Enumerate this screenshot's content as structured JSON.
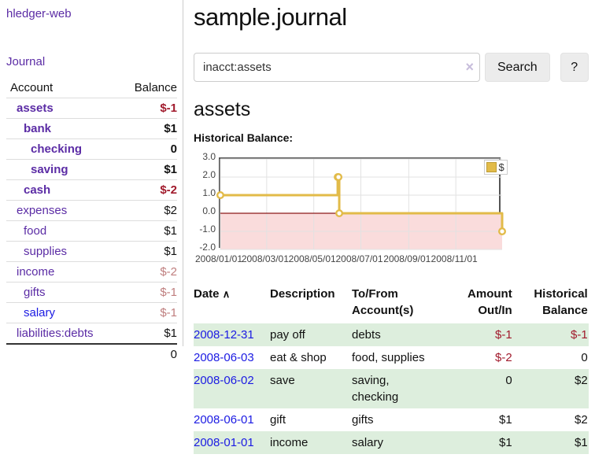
{
  "app": {
    "brand": "hledger-web"
  },
  "nav": {
    "journal_label": "Journal"
  },
  "colors": {
    "link_purple": "#5b2ca5",
    "link_blue": "#1b1ae3",
    "neg_strong": "#a11a2c",
    "neg_soft": "#bf7e7e",
    "row_shade": "#ddeedd",
    "chart_line": "#e2bb49",
    "chart_negative_shade": "#fadcdc",
    "chart_zero_line": "#8c1a1a",
    "chart_border": "#555555",
    "chart_grid": "#e2e2e2"
  },
  "sidebar": {
    "columns": {
      "account": "Account",
      "balance": "Balance"
    },
    "accounts": [
      {
        "name": "assets",
        "balance": "$-1",
        "indent": 1,
        "bold": true,
        "balance_class": "neg-strong",
        "name_class": ""
      },
      {
        "name": "bank",
        "balance": "$1",
        "indent": 2,
        "bold": true,
        "balance_class": "",
        "name_class": ""
      },
      {
        "name": "checking",
        "balance": "0",
        "indent": 3,
        "bold": true,
        "balance_class": "",
        "name_class": ""
      },
      {
        "name": "saving",
        "balance": "$1",
        "indent": 3,
        "bold": true,
        "balance_class": "",
        "name_class": ""
      },
      {
        "name": "cash",
        "balance": "$-2",
        "indent": 2,
        "bold": true,
        "balance_class": "neg-strong",
        "name_class": ""
      },
      {
        "name": "expenses",
        "balance": "$2",
        "indent": 1,
        "bold": false,
        "balance_class": "",
        "name_class": ""
      },
      {
        "name": "food",
        "balance": "$1",
        "indent": 2,
        "bold": false,
        "balance_class": "",
        "name_class": ""
      },
      {
        "name": "supplies",
        "balance": "$1",
        "indent": 2,
        "bold": false,
        "balance_class": "",
        "name_class": ""
      },
      {
        "name": "income",
        "balance": "$-2",
        "indent": 1,
        "bold": false,
        "balance_class": "neg-soft",
        "name_class": ""
      },
      {
        "name": "gifts",
        "balance": "$-1",
        "indent": 2,
        "bold": false,
        "balance_class": "neg-soft",
        "name_class": ""
      },
      {
        "name": "salary",
        "balance": "$-1",
        "indent": 2,
        "bold": false,
        "balance_class": "neg-soft",
        "name_class": "link-new"
      },
      {
        "name": "liabilities:debts",
        "balance": "$1",
        "indent": 1,
        "bold": false,
        "balance_class": "",
        "name_class": ""
      }
    ],
    "total": "0"
  },
  "header": {
    "title": "sample.journal"
  },
  "search": {
    "value": "inacct:assets",
    "clear_icon": "×",
    "button_label": "Search",
    "help_label": "?"
  },
  "account_page": {
    "heading": "assets",
    "chart_label": "Historical Balance:"
  },
  "chart_data": {
    "type": "line",
    "step": true,
    "title": "Historical Balance:",
    "x_range": [
      "2008-01-01",
      "2008-12-31"
    ],
    "ylim": [
      -2,
      3
    ],
    "y_ticks": [
      "3.0",
      "2.0",
      "1.0",
      "0.0",
      "-1.0",
      "-2.0"
    ],
    "x_ticks": [
      {
        "date": "2008-01-01",
        "label": "2008/01/01"
      },
      {
        "date": "2008-03-01",
        "label": "2008/03/01"
      },
      {
        "date": "2008-05-01",
        "label": "2008/05/01"
      },
      {
        "date": "2008-07-01",
        "label": "2008/07/01"
      },
      {
        "date": "2008-09-01",
        "label": "2008/09/01"
      },
      {
        "date": "2008-11-01",
        "label": "2008/11/01"
      }
    ],
    "series": [
      {
        "name": "$",
        "points": [
          [
            "2008-01-01",
            1
          ],
          [
            "2008-06-01",
            2
          ],
          [
            "2008-06-02",
            2
          ],
          [
            "2008-06-03",
            0
          ],
          [
            "2008-12-31",
            -1
          ]
        ]
      }
    ],
    "legend_position": "top-right",
    "grid": true,
    "negative_shade": true
  },
  "register": {
    "columns": {
      "date": "Date",
      "sort_icon": "∧",
      "description": "Description",
      "accounts": "To/From Account(s)",
      "amount": "Amount Out/In",
      "balance": "Historical Balance"
    },
    "rows": [
      {
        "date": "2008-12-31",
        "description": "pay off",
        "accounts": "debts",
        "amount": "$-1",
        "amount_neg": true,
        "balance": "$-1",
        "balance_neg": true,
        "shaded": true
      },
      {
        "date": "2008-06-03",
        "description": "eat & shop",
        "accounts": "food, supplies",
        "amount": "$-2",
        "amount_neg": true,
        "balance": "0",
        "balance_neg": false,
        "shaded": false
      },
      {
        "date": "2008-06-02",
        "description": "save",
        "accounts": "saving, checking",
        "amount": "0",
        "amount_neg": false,
        "balance": "$2",
        "balance_neg": false,
        "shaded": true
      },
      {
        "date": "2008-06-01",
        "description": "gift",
        "accounts": "gifts",
        "amount": "$1",
        "amount_neg": false,
        "balance": "$2",
        "balance_neg": false,
        "shaded": false
      },
      {
        "date": "2008-01-01",
        "description": "income",
        "accounts": "salary",
        "amount": "$1",
        "amount_neg": false,
        "balance": "$1",
        "balance_neg": false,
        "shaded": true
      }
    ]
  }
}
